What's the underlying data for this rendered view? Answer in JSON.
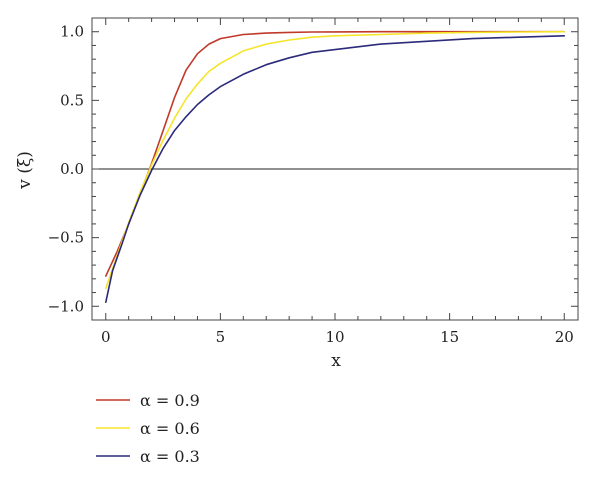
{
  "chart_data": {
    "type": "line",
    "title": "",
    "xlabel": "x",
    "ylabel": "v (ξ)",
    "xlim": [
      -0.6,
      20.6
    ],
    "ylim": [
      -1.1,
      1.1
    ],
    "xticks": [
      0,
      5,
      10,
      15,
      20
    ],
    "xtick_labels": [
      "0",
      "5",
      "10",
      "15",
      "20"
    ],
    "yticks": [
      -1.0,
      -0.5,
      0.0,
      0.5,
      1.0
    ],
    "ytick_labels": [
      "−1.0",
      "−0.5",
      "0.0",
      "0.5",
      "1.0"
    ],
    "grid": false,
    "frame": true,
    "zero_line": true,
    "legend_position": "below",
    "series": [
      {
        "name": "α = 0.9",
        "color": "#c0392b",
        "x": [
          0,
          0.5,
          1,
          1.5,
          2,
          2.5,
          3,
          3.5,
          4,
          4.5,
          5,
          6,
          7,
          8,
          9,
          10,
          12,
          14,
          16,
          18,
          20
        ],
        "y": [
          -0.78,
          -0.6,
          -0.4,
          -0.18,
          0.04,
          0.28,
          0.52,
          0.72,
          0.84,
          0.91,
          0.95,
          0.98,
          0.99,
          0.995,
          0.998,
          0.999,
          1.0,
          1.0,
          1.0,
          1.0,
          1.0
        ]
      },
      {
        "name": "α = 0.6",
        "color": "#f5e52a",
        "x": [
          0,
          0.5,
          1,
          1.5,
          2,
          2.5,
          3,
          3.5,
          4,
          4.5,
          5,
          6,
          7,
          8,
          9,
          10,
          12,
          14,
          16,
          18,
          20
        ],
        "y": [
          -0.87,
          -0.63,
          -0.39,
          -0.17,
          0.03,
          0.21,
          0.37,
          0.51,
          0.62,
          0.71,
          0.77,
          0.86,
          0.91,
          0.94,
          0.96,
          0.97,
          0.98,
          0.99,
          0.995,
          0.998,
          1.0
        ]
      },
      {
        "name": "α = 0.3",
        "color": "#2c2a7a",
        "x": [
          0,
          0.3,
          0.7,
          1,
          1.5,
          2,
          2.5,
          3,
          3.5,
          4,
          4.5,
          5,
          6,
          7,
          8,
          9,
          10,
          12,
          14,
          16,
          18,
          20
        ],
        "y": [
          -0.97,
          -0.74,
          -0.55,
          -0.4,
          -0.19,
          -0.01,
          0.15,
          0.28,
          0.38,
          0.47,
          0.54,
          0.6,
          0.69,
          0.76,
          0.81,
          0.85,
          0.87,
          0.91,
          0.93,
          0.95,
          0.96,
          0.97
        ]
      }
    ]
  }
}
